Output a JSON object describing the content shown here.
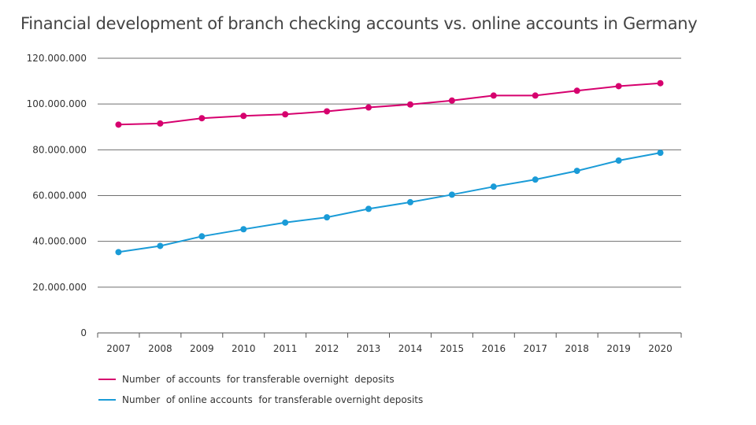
{
  "chart_data": {
    "type": "line",
    "title": "Financial development of branch checking accounts vs. online accounts in Germany",
    "xlabel": "",
    "ylabel": "",
    "categories": [
      "2007",
      "2008",
      "2009",
      "2010",
      "2011",
      "2012",
      "2013",
      "2014",
      "2015",
      "2016",
      "2017",
      "2018",
      "2019",
      "2020"
    ],
    "ylim": [
      0,
      120000000
    ],
    "yticks": [
      0,
      20000000,
      40000000,
      60000000,
      80000000,
      100000000,
      120000000
    ],
    "ytick_labels": [
      "0",
      "20.000.000",
      "40.000.000",
      "60.000.000",
      "80.000.000",
      "100.000.000",
      "120.000.000"
    ],
    "grid": "horizontal",
    "legend_position": "bottom-left",
    "series": [
      {
        "name": "Number  of accounts  for transferable overnight  deposits",
        "color": "#d6006e",
        "values": [
          91000000,
          91500000,
          93800000,
          94800000,
          95500000,
          96800000,
          98500000,
          99800000,
          101500000,
          103700000,
          103700000,
          105800000,
          107800000,
          109100000
        ]
      },
      {
        "name": "Number  of online accounts  for transferable overnight deposits",
        "color": "#1a9bd7",
        "values": [
          35300000,
          38000000,
          42200000,
          45300000,
          48200000,
          50500000,
          54200000,
          57100000,
          60400000,
          63900000,
          67000000,
          70800000,
          75300000,
          78700000
        ]
      }
    ]
  }
}
